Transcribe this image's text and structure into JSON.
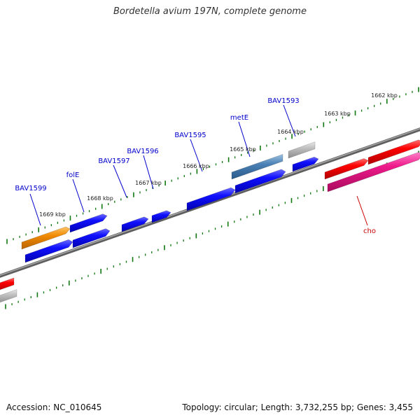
{
  "title": "Bordetella avium 197N, complete genome",
  "accession": "Accession: NC_010645",
  "topology": "Topology: circular; Length: 3,732,255 bp; Genes: 3,455",
  "colors": {
    "backbone": "#7a7a7a",
    "ticks": "#117711",
    "gene_label_blue": "#0000cc",
    "gene_label_red": "#cc0000"
  },
  "scale_labels": [
    "1669 kbp",
    "1668 kbp",
    "1667 kbp",
    "1666 kbp",
    "1665 kbp",
    "1664 kbp",
    "1663 kbp",
    "1662 kbp"
  ],
  "gene_labels": [
    "BAV1599",
    "folE",
    "BAV1597",
    "BAV1596",
    "BAV1595",
    "metE",
    "BAV1593",
    "cho"
  ]
}
